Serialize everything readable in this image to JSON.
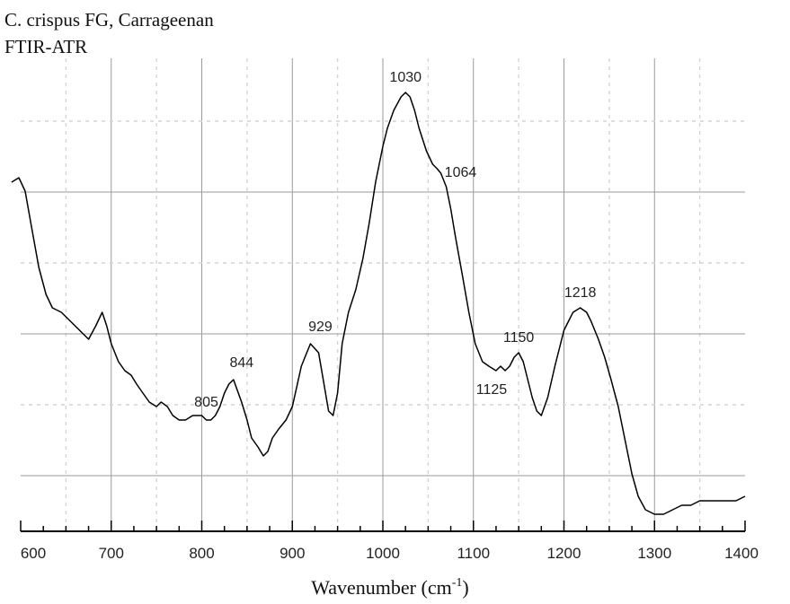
{
  "chart_data": {
    "type": "line",
    "title_lines": [
      "C. crispus FG, Carrageenan",
      "FTIR-ATR"
    ],
    "xlabel": "Wavenumber (cm",
    "xlabel_sup": "-1",
    "xlabel_end": ")",
    "xlim": [
      600,
      1400
    ],
    "x_ticks": [
      "600",
      "700",
      "800",
      "900",
      "1000",
      "1100",
      "1200",
      "1300",
      "1400"
    ],
    "y_axis_shown": false,
    "grid": true,
    "series": [
      {
        "x": [
          590,
          598,
          605,
          612,
          620,
          628,
          635,
          645,
          655,
          665,
          675,
          683,
          690,
          695,
          700,
          708,
          715,
          722,
          728,
          735,
          742,
          750,
          755,
          762,
          768,
          775,
          782,
          790,
          795,
          800,
          805,
          810,
          815,
          820,
          825,
          830,
          835,
          844,
          850,
          855,
          862,
          868,
          873,
          878,
          885,
          893,
          900,
          910,
          920,
          929,
          935,
          940,
          945,
          950,
          955,
          962,
          970,
          978,
          985,
          992,
          1000,
          1005,
          1012,
          1020,
          1025,
          1030,
          1035,
          1040,
          1048,
          1055,
          1060,
          1064,
          1070,
          1075,
          1080,
          1088,
          1095,
          1102,
          1110,
          1117,
          1125,
          1130,
          1135,
          1140,
          1145,
          1150,
          1155,
          1160,
          1165,
          1170,
          1175,
          1182,
          1190,
          1200,
          1210,
          1218,
          1225,
          1230,
          1238,
          1245,
          1252,
          1260,
          1268,
          1275,
          1282,
          1290,
          1300,
          1310,
          1320,
          1330,
          1340,
          1350,
          1360,
          1370,
          1380,
          1390,
          1400
        ],
        "y": [
          74,
          75,
          72,
          64,
          55,
          49,
          46,
          45,
          43,
          41,
          39,
          42,
          45,
          42,
          38,
          34,
          32,
          31,
          29,
          27,
          25,
          24,
          25,
          24,
          22,
          21,
          21,
          22,
          22,
          22,
          21,
          21,
          22,
          24,
          27,
          29,
          30,
          25,
          21,
          17,
          15,
          13,
          14,
          17,
          19,
          21,
          24,
          33,
          38,
          36,
          29,
          23,
          22,
          27,
          38,
          45,
          50,
          57,
          65,
          74,
          82,
          86,
          90,
          93,
          94,
          93,
          90,
          86,
          81,
          78,
          77,
          76,
          73,
          68,
          62,
          53,
          45,
          38,
          34,
          33,
          32,
          33,
          32,
          33,
          35,
          36,
          34,
          30,
          26,
          23,
          22,
          26,
          33,
          41,
          45,
          46,
          45,
          43,
          39,
          35,
          30,
          24,
          16,
          9,
          4,
          1,
          0,
          0,
          1,
          2,
          2,
          3,
          3,
          3,
          3,
          3,
          4
        ]
      }
    ],
    "annotations": [
      {
        "text": "805",
        "x": 805,
        "y": 22
      },
      {
        "text": "844",
        "x": 844,
        "y": 30
      },
      {
        "text": "929",
        "x": 929,
        "y": 38
      },
      {
        "text": "1030",
        "x": 1030,
        "y": 94
      },
      {
        "text": "1064",
        "x": 1064,
        "y": 76
      },
      {
        "text": "1125",
        "x": 1125,
        "y": 32
      },
      {
        "text": "1150",
        "x": 1150,
        "y": 36
      },
      {
        "text": "1218",
        "x": 1218,
        "y": 46
      }
    ]
  }
}
